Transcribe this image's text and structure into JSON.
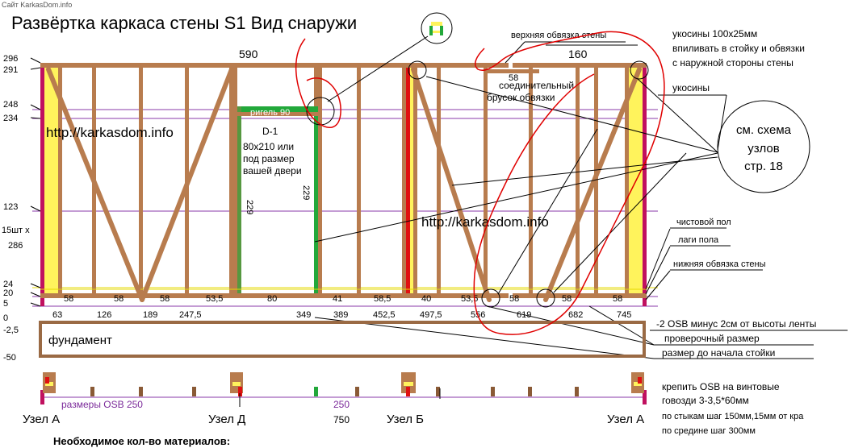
{
  "watermark_top": "Сайт KarkasDom.info",
  "title": "Развёртка каркаса стены S1   Вид снаружи",
  "top_dims": {
    "total": "590",
    "segment": "160",
    "top_small": "58"
  },
  "height_labels": [
    "296",
    "291",
    "248",
    "234",
    "123",
    "24",
    "20",
    "5",
    "0",
    "-2,5",
    "-50"
  ],
  "left_studs_note": [
    "15шт х",
    "286"
  ],
  "bottom_spacing": [
    "58",
    "58",
    "58",
    "53,5",
    "80",
    "41",
    "58,5",
    "40",
    "53,5",
    "58",
    "58",
    "58"
  ],
  "bottom_positions": [
    "63",
    "126",
    "189",
    "247,5",
    "349",
    "389",
    "452,5",
    "497,5",
    "556",
    "619",
    "682",
    "745"
  ],
  "door": {
    "header": "ригель 90",
    "name": "D-1",
    "size_lines": [
      "80x210 или",
      "под размер",
      "вашей двери"
    ],
    "jamb_left": "229",
    "jamb_right": "229"
  },
  "site_url": "http://karkasdom.info",
  "connector_lines": [
    "соединительный",
    "брусок обвязки"
  ],
  "callouts": {
    "top_plate": "верхняя обвязка стены",
    "braces_note": [
      "укосины 100х25мм",
      "впиливать в стойку и обвязки",
      "с наружной стороны стены"
    ],
    "braces": "укосины",
    "scheme": [
      "см. схема",
      "узлов",
      "стр. 18"
    ],
    "finish_floor": "чистовой пол",
    "joists": "лаги пола",
    "bottom_plate": "нижняя обвязка стены",
    "osb_minus": "-2 OSB минус 2см от высоты ленты",
    "check_size": "проверочный размер",
    "to_stud": "размер до начала стойки"
  },
  "foundation": "фундамент",
  "plan": {
    "osb_label": "размеры OSB 250",
    "osb_mid": "250",
    "total": "750",
    "nodes": [
      "Узел А",
      "Узел Д",
      "Узел Б",
      "Узел А"
    ]
  },
  "fastening_note": [
    "крепить OSB на винтовые",
    "говозди 3-3,5*60мм",
    "по стыкам шаг 150мм,15мм от кра",
    "по средине шаг 300мм"
  ],
  "materials_heading": "Необходимое кол-во материалов:",
  "colors": {
    "wood": "#b87c4e",
    "wood_dark": "#8a5a36",
    "yellow": "#fff35c",
    "magenta": "#c0105f",
    "red": "#e01010",
    "green": "#22a83a",
    "purple": "#8a3aa8",
    "sketch_red": "#e00000",
    "foundation_line": "#9a6a44"
  }
}
